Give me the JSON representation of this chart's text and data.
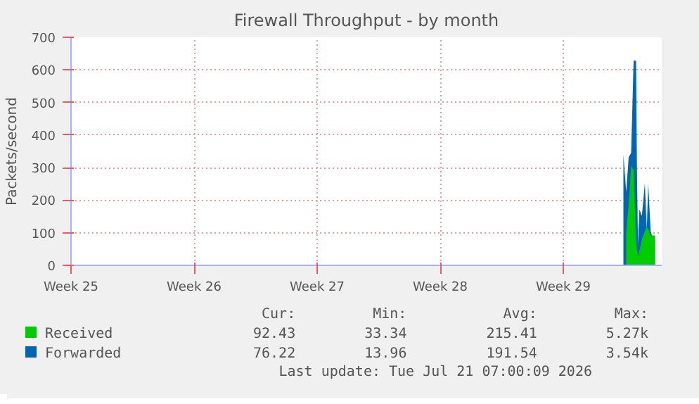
{
  "chart_data": {
    "type": "area",
    "title": "Firewall Throughput - by month",
    "ylabel": "Packets/second",
    "xlim": [
      "2026-06-15",
      "2026-07-18T14:24"
    ],
    "xticks": [
      {
        "value": "2026-06-15",
        "label": "Week 25"
      },
      {
        "value": "2026-06-22",
        "label": "Week 26"
      },
      {
        "value": "2026-06-29",
        "label": "Week 27"
      },
      {
        "value": "2026-07-06",
        "label": "Week 28"
      },
      {
        "value": "2026-07-13",
        "label": "Week 29"
      }
    ],
    "ylim": [
      0,
      700
    ],
    "yticks": [
      0,
      100,
      200,
      300,
      400,
      500,
      600,
      700
    ],
    "grid": true,
    "legend": "bottom",
    "series": [
      {
        "name": "Forwarded",
        "color": "#0066b3",
        "x": [
          "2026-07-16T10:05",
          "2026-07-16T13:55",
          "2026-07-16T17:17",
          "2026-07-16T20:38",
          "2026-07-17T00:00",
          "2026-07-17T03:22",
          "2026-07-17T04:34",
          "2026-07-17T06:00",
          "2026-07-17T07:55",
          "2026-07-17T11:17",
          "2026-07-17T15:22",
          "2026-07-17T18:00",
          "2026-07-17T19:55",
          "2026-07-17T23:17",
          "2026-07-18T02:38",
          "2026-07-18T05:17"
        ],
        "values": [
          340,
          225,
          332,
          345,
          628,
          628,
          292,
          65,
          172,
          152,
          252,
          110,
          252,
          105,
          80,
          80
        ]
      },
      {
        "name": "Received",
        "color": "#00cc00",
        "x": [
          "2026-07-16T13:55",
          "2026-07-16T17:17",
          "2026-07-16T20:38",
          "2026-07-17T00:00",
          "2026-07-17T03:22",
          "2026-07-17T06:00",
          "2026-07-17T11:17",
          "2026-07-17T18:00",
          "2026-07-17T23:17",
          "2026-07-18T05:17"
        ],
        "values": [
          100,
          185,
          305,
          292,
          65,
          25,
          80,
          120,
          92,
          92
        ]
      }
    ],
    "annotations": [
      "Cur:",
      "Min:",
      "Avg:",
      "Max:",
      "76.22",
      "13.96",
      "191.54",
      "3.54k",
      "92.43",
      "33.34",
      "215.41",
      "5.27k",
      "Last update: Tue Jul 21 07:00:09 2026"
    ]
  }
}
